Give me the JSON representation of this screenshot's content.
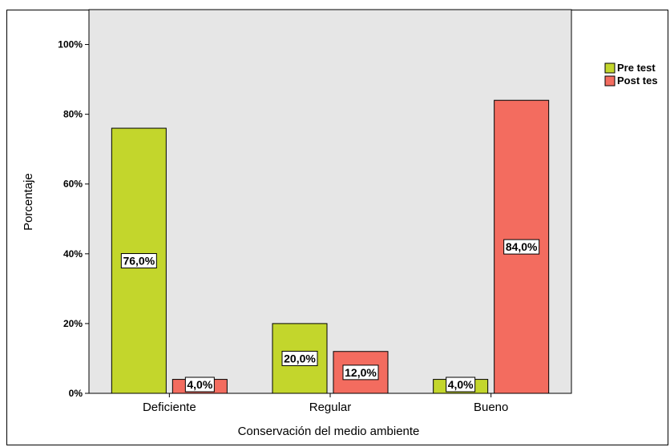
{
  "chart_data": {
    "type": "bar",
    "title": "",
    "xlabel": "Conservación del medio ambiente",
    "ylabel": "Porcentaje",
    "categories": [
      "Deficiente",
      "Regular",
      "Bueno"
    ],
    "series": [
      {
        "name": "Pre test",
        "values": [
          76.0,
          20.0,
          4.0
        ],
        "labels": [
          "76,0%",
          "20,0%",
          "4,0%"
        ],
        "color": "#c3d62c"
      },
      {
        "name": "Post test",
        "values": [
          4.0,
          12.0,
          84.0
        ],
        "labels": [
          "4,0%",
          "12,0%",
          "84,0%"
        ],
        "color": "#f36c5f"
      }
    ],
    "ylim": [
      0,
      110
    ],
    "yticks": [
      0,
      20,
      40,
      60,
      80,
      100
    ],
    "ytick_labels": [
      "0%",
      "20%",
      "40%",
      "60%",
      "80%",
      "100%"
    ],
    "grid": false,
    "legend_position": "right",
    "plot_background": "#e6e6e6"
  },
  "legend": {
    "pre_label": "Pre test",
    "post_label": "Post tes"
  }
}
